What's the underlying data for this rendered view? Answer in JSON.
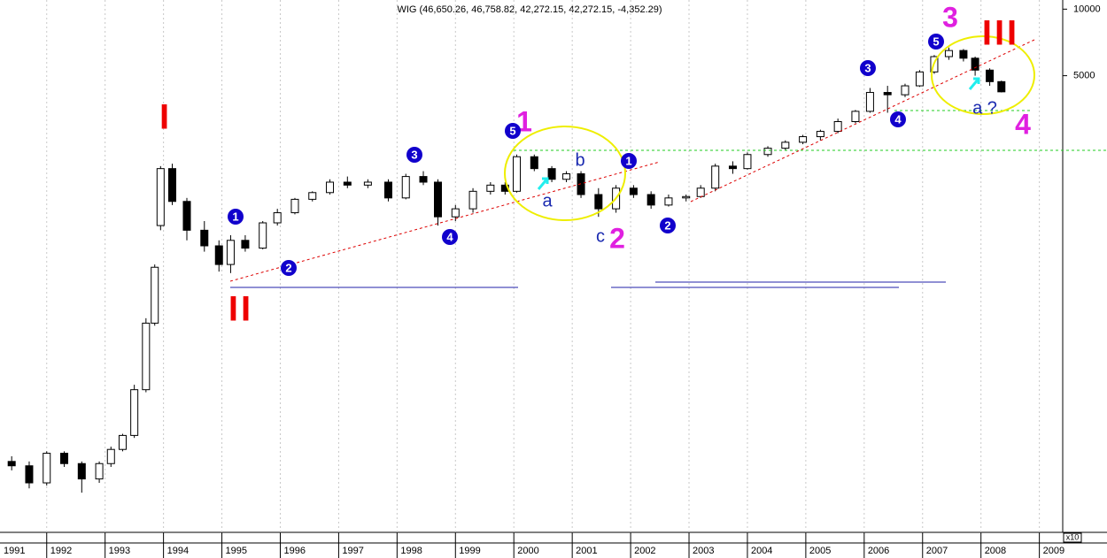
{
  "chart_data": {
    "type": "candlestick",
    "title": "WIG (46,650.26, 46,758.82, 42,272.15, 42,272.15, -4,352.29)",
    "y_axis_multiplier": "x10",
    "log_scale": true,
    "grid": true,
    "xlim": [
      1991.2,
      2009.4
    ],
    "xticks": [
      1991,
      1992,
      1993,
      1994,
      1995,
      1996,
      1997,
      1998,
      1999,
      2000,
      2001,
      2002,
      2003,
      2004,
      2005,
      2006,
      2007,
      2008,
      2009
    ],
    "ylim": [
      43,
      11000
    ],
    "yticks": [
      10000,
      5000
    ],
    "x": [
      1991.4,
      1991.7,
      1992.0,
      1992.3,
      1992.6,
      1992.9,
      1993.1,
      1993.3,
      1993.5,
      1993.7,
      1993.85,
      1993.95,
      1994.15,
      1994.4,
      1994.7,
      1994.95,
      1995.15,
      1995.4,
      1995.7,
      1995.95,
      1996.25,
      1996.55,
      1996.85,
      1997.15,
      1997.5,
      1997.85,
      1998.15,
      1998.45,
      1998.7,
      1999.0,
      1999.3,
      1999.6,
      1999.85,
      2000.05,
      2000.35,
      2000.65,
      2000.9,
      2001.15,
      2001.45,
      2001.75,
      2002.05,
      2002.35,
      2002.65,
      2002.95,
      2003.2,
      2003.45,
      2003.75,
      2004.0,
      2004.35,
      2004.65,
      2004.95,
      2005.25,
      2005.55,
      2005.85,
      2006.1,
      2006.4,
      2006.7,
      2006.95,
      2007.2,
      2007.45,
      2007.7,
      2007.9,
      2008.15,
      2008.35
    ],
    "open": [
      90,
      86,
      72,
      98,
      88,
      75,
      88,
      102,
      118,
      190,
      380,
      1050,
      1900,
      1350,
      1000,
      850,
      700,
      900,
      830,
      1080,
      1200,
      1380,
      1480,
      1650,
      1600,
      1650,
      1400,
      1750,
      1650,
      1150,
      1250,
      1500,
      1600,
      1500,
      2150,
      1900,
      1700,
      1800,
      1450,
      1250,
      1550,
      1450,
      1300,
      1400,
      1420,
      1550,
      1950,
      1900,
      2200,
      2350,
      2500,
      2650,
      2800,
      3100,
      3450,
      4200,
      4100,
      4500,
      5200,
      6100,
      6500,
      6000,
      5300,
      4700
    ],
    "high": [
      95,
      90,
      100,
      100,
      90,
      90,
      105,
      120,
      200,
      400,
      700,
      1950,
      2000,
      1400,
      1100,
      900,
      950,
      950,
      1100,
      1250,
      1400,
      1500,
      1700,
      1750,
      1700,
      1700,
      1800,
      1850,
      1700,
      1300,
      1550,
      1650,
      1650,
      2200,
      2200,
      1950,
      1850,
      1850,
      1550,
      1600,
      1600,
      1500,
      1450,
      1450,
      1600,
      2000,
      2050,
      2250,
      2400,
      2550,
      2700,
      2850,
      3200,
      3500,
      4400,
      4500,
      4600,
      5300,
      6200,
      6700,
      6600,
      6100,
      5400,
      4750
    ],
    "low": [
      82,
      68,
      70,
      85,
      65,
      72,
      85,
      100,
      115,
      185,
      370,
      1000,
      1300,
      900,
      800,
      650,
      640,
      800,
      820,
      1050,
      1180,
      1350,
      1450,
      1550,
      1550,
      1350,
      1380,
      1600,
      1050,
      1100,
      1200,
      1450,
      1450,
      1480,
      1850,
      1650,
      1650,
      1400,
      1150,
      1200,
      1400,
      1250,
      1280,
      1350,
      1400,
      1500,
      1800,
      1880,
      2150,
      2300,
      2450,
      2550,
      2750,
      3050,
      3400,
      3400,
      4000,
      4450,
      5100,
      5900,
      5800,
      5000,
      4500,
      4200
    ],
    "close": [
      86,
      72,
      98,
      88,
      75,
      88,
      102,
      118,
      190,
      380,
      680,
      1900,
      1350,
      1000,
      850,
      700,
      900,
      830,
      1080,
      1200,
      1380,
      1480,
      1650,
      1600,
      1650,
      1400,
      1750,
      1650,
      1150,
      1250,
      1500,
      1600,
      1500,
      2150,
      1900,
      1700,
      1800,
      1450,
      1250,
      1550,
      1450,
      1300,
      1400,
      1420,
      1550,
      1950,
      1900,
      2200,
      2350,
      2500,
      2650,
      2800,
      3100,
      3450,
      4200,
      4100,
      4500,
      5200,
      6100,
      6500,
      6000,
      5300,
      4700,
      4227
    ],
    "annotations": [
      "I",
      "II",
      "III",
      "1",
      "2",
      "3",
      "4",
      "a",
      "b",
      "c",
      "a ?",
      "1",
      "2",
      "3",
      "4",
      "5",
      "1",
      "2",
      "3",
      "4",
      "5"
    ]
  }
}
